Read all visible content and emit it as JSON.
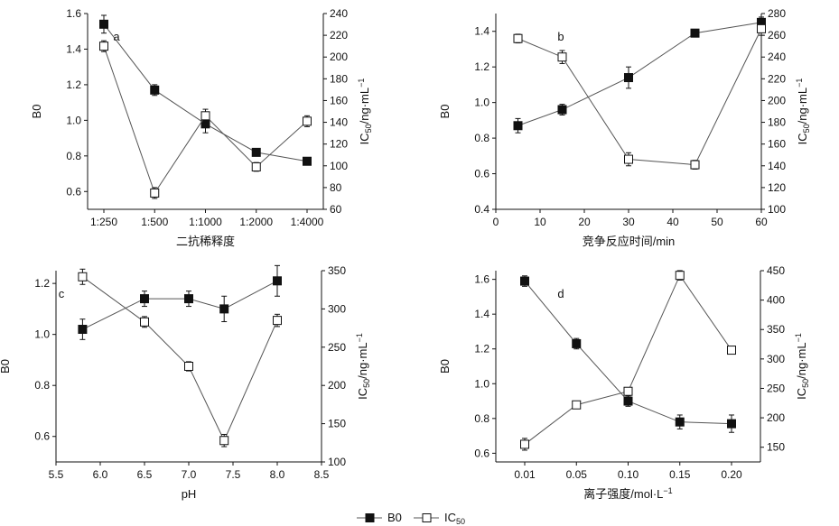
{
  "chart_data": [
    {
      "type": "line",
      "panel_label": "a",
      "x_mode": "categorical",
      "categories": [
        "1:250",
        "1:500",
        "1:1000",
        "1:2000",
        "1:4000"
      ],
      "xlabel": "二抗稀释度",
      "ylabel_left": "B0",
      "ylabel_right": "IC50/ng·mL-1",
      "ylim_left": [
        0.5,
        1.6
      ],
      "yticks_left": [
        "0.6",
        "0.8",
        "1.0",
        "1.2",
        "1.4",
        "1.6"
      ],
      "ylim_right": [
        60,
        240
      ],
      "yticks_right": [
        "60",
        "80",
        "100",
        "120",
        "140",
        "160",
        "180",
        "200",
        "220",
        "240"
      ],
      "series": [
        {
          "name": "B0",
          "axis": "left",
          "marker": "filled-square",
          "values": [
            1.54,
            1.17,
            0.98,
            0.82,
            0.77
          ],
          "errors": [
            0.05,
            0.03,
            0.05,
            0.02,
            0.02
          ]
        },
        {
          "name": "IC50",
          "axis": "right",
          "marker": "open-square",
          "values": [
            210,
            75,
            146,
            99,
            141
          ],
          "errors": [
            5,
            5,
            6,
            4,
            5
          ]
        }
      ]
    },
    {
      "type": "line",
      "panel_label": "b",
      "x_mode": "numeric",
      "x": [
        5,
        15,
        30,
        45,
        60
      ],
      "xlim": [
        0,
        60
      ],
      "xticks": [
        "0",
        "10",
        "20",
        "30",
        "40",
        "50",
        "60"
      ],
      "xlabel": "竞争反应时间/min",
      "ylabel_left": "B0",
      "ylabel_right": "IC50/ng·mL-1",
      "ylim_left": [
        0.4,
        1.5
      ],
      "yticks_left": [
        "0.4",
        "0.6",
        "0.8",
        "1.0",
        "1.2",
        "1.4"
      ],
      "ylim_right": [
        100,
        280
      ],
      "yticks_right": [
        "100",
        "120",
        "140",
        "160",
        "180",
        "200",
        "220",
        "240",
        "260",
        "280"
      ],
      "series": [
        {
          "name": "B0",
          "axis": "left",
          "marker": "filled-square",
          "values": [
            0.87,
            0.96,
            1.14,
            1.39,
            1.45
          ],
          "errors": [
            0.04,
            0.03,
            0.06,
            0.02,
            0.03
          ]
        },
        {
          "name": "IC50",
          "axis": "right",
          "marker": "open-square",
          "values": [
            257,
            240,
            146,
            141,
            266
          ],
          "errors": [
            4,
            6,
            6,
            4,
            6
          ]
        }
      ]
    },
    {
      "type": "line",
      "panel_label": "c",
      "x_mode": "numeric",
      "x": [
        5.8,
        6.5,
        7.0,
        7.4,
        8.0
      ],
      "xlim": [
        5.5,
        8.5
      ],
      "xticks": [
        "5.5",
        "6.0",
        "6.5",
        "7.0",
        "7.5",
        "8.0",
        "8.5"
      ],
      "xlabel": "pH",
      "ylabel_left": "B0",
      "ylabel_right": "IC50/ng·mL-1",
      "ylim_left": [
        0.5,
        1.25
      ],
      "yticks_left": [
        "0.6",
        "0.8",
        "1.0",
        "1.2"
      ],
      "ylim_right": [
        100,
        350
      ],
      "yticks_right": [
        "100",
        "150",
        "200",
        "250",
        "300",
        "350"
      ],
      "series": [
        {
          "name": "B0",
          "axis": "left",
          "marker": "filled-square",
          "values": [
            1.02,
            1.14,
            1.14,
            1.1,
            1.21
          ],
          "errors": [
            0.04,
            0.03,
            0.03,
            0.05,
            0.06
          ]
        },
        {
          "name": "IC50",
          "axis": "right",
          "marker": "open-square",
          "values": [
            342,
            283,
            225,
            128,
            285
          ],
          "errors": [
            10,
            7,
            6,
            8,
            8
          ]
        }
      ]
    },
    {
      "type": "line",
      "panel_label": "d",
      "x_mode": "categorical",
      "categories": [
        "0.01",
        "0.05",
        "0.10",
        "0.15",
        "0.20"
      ],
      "xlabel": "离子强度/mol·L-1",
      "ylabel_left": "B0",
      "ylabel_right": "IC50/ng·mL-1",
      "ylim_left": [
        0.55,
        1.65
      ],
      "yticks_left": [
        "0.6",
        "0.8",
        "1.0",
        "1.2",
        "1.4",
        "1.6"
      ],
      "ylim_right": [
        125,
        450
      ],
      "yticks_right": [
        "150",
        "200",
        "250",
        "300",
        "350",
        "400",
        "450"
      ],
      "series": [
        {
          "name": "B0",
          "axis": "left",
          "marker": "filled-square",
          "values": [
            1.59,
            1.23,
            0.9,
            0.78,
            0.77
          ],
          "errors": [
            0.03,
            0.03,
            0.03,
            0.04,
            0.05
          ]
        },
        {
          "name": "IC50",
          "axis": "right",
          "marker": "open-square",
          "values": [
            155,
            222,
            245,
            442,
            315
          ],
          "errors": [
            10,
            5,
            5,
            8,
            6
          ]
        }
      ]
    }
  ],
  "legend": {
    "placement": "bottom-center",
    "items": [
      {
        "label": "B0",
        "marker": "filled-square"
      },
      {
        "label": "IC",
        "subscript": "50",
        "marker": "open-square"
      }
    ]
  },
  "colors": {
    "axis": "#111111",
    "line": "#555555",
    "filled_marker": "#111111",
    "open_marker_fill": "#ffffff"
  }
}
